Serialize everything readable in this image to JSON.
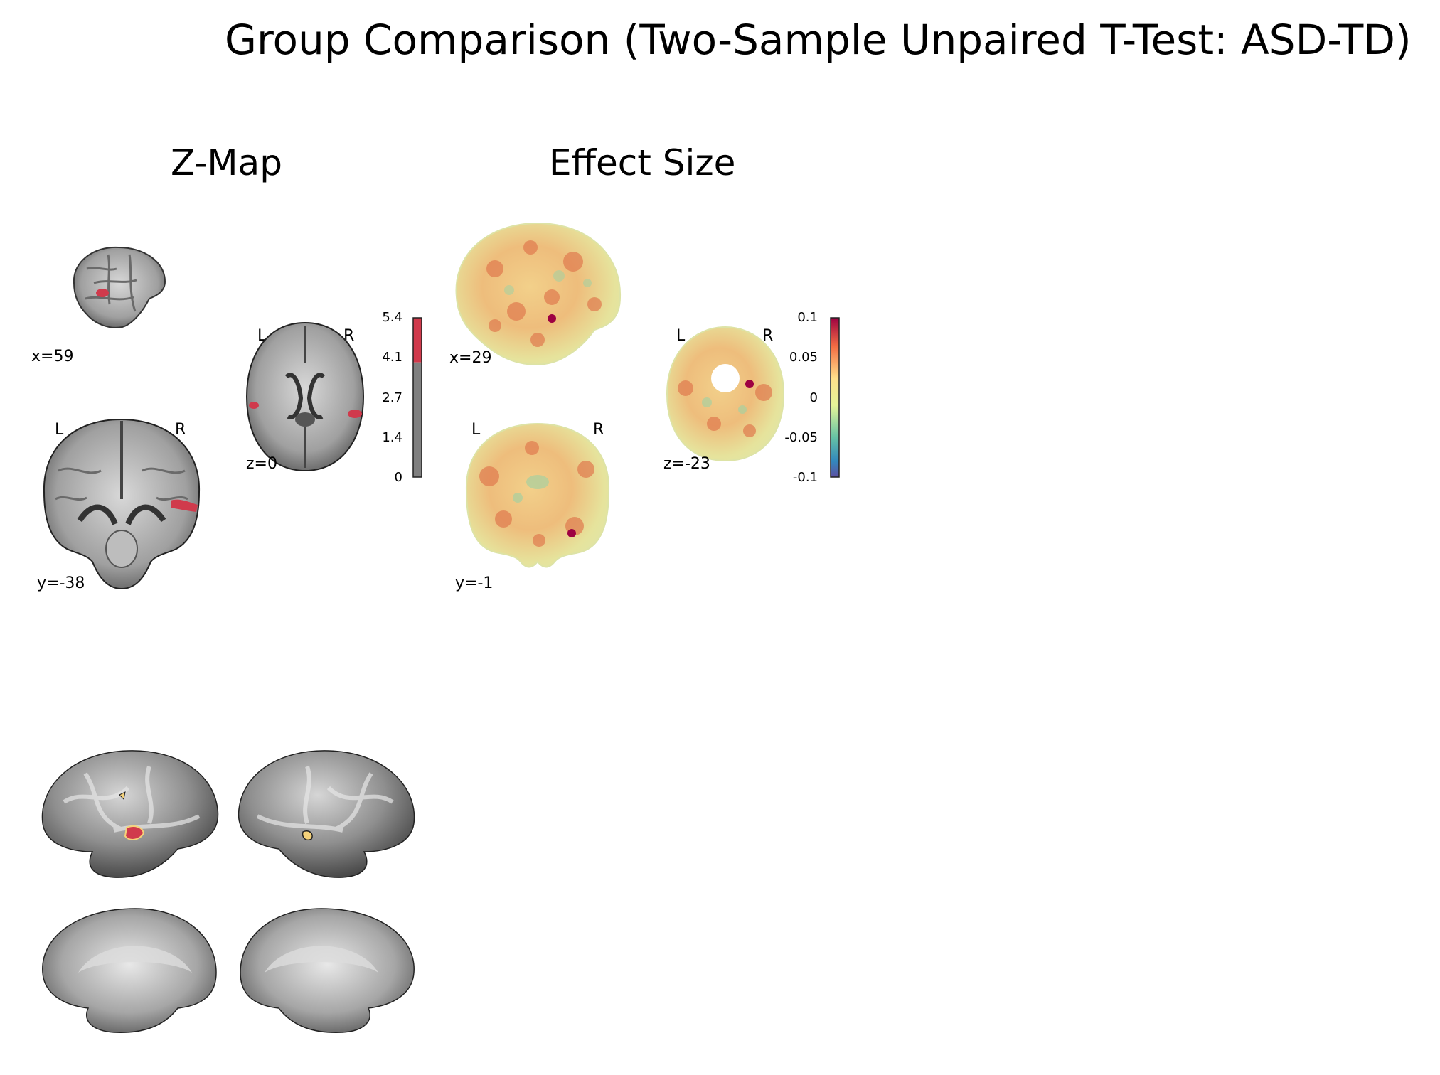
{
  "figure": {
    "title": "Group Comparison (Two-Sample Unpaired T-Test: ASD-TD)"
  },
  "zmap": {
    "title": "Z-Map",
    "sagittal_label": "x=59",
    "coronal_label": "y=-38",
    "axial_label": "z=0",
    "left_marker": "L",
    "right_marker": "R",
    "colorbar": {
      "ticks": [
        "5.4",
        "4.1",
        "2.7",
        "1.4",
        "0"
      ],
      "threshold_fraction": 0.72,
      "above_color": "#d03a4c",
      "below_color": "#808080"
    }
  },
  "effect": {
    "title": "Effect Size",
    "sagittal_label": "x=29",
    "coronal_label": "y=-1",
    "axial_label": "z=-23",
    "left_marker": "L",
    "right_marker": "R",
    "colorbar": {
      "ticks": [
        "0.1",
        "0.05",
        "0",
        "-0.05",
        "-0.1"
      ],
      "colormap": [
        "#9e0142",
        "#f46d43",
        "#fee08b",
        "#e6f598",
        "#66c2a5",
        "#3288bd",
        "#5e4fa2"
      ]
    }
  },
  "surface": {
    "highlight_color": "#d03a4c",
    "outline_color": "#f5d27a"
  }
}
